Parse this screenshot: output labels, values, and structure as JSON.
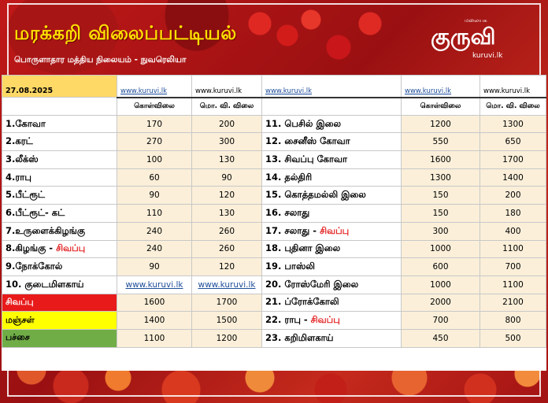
{
  "header": {
    "title": "மரக்கறி விலைப்பட்டியல்",
    "subtitle": "பொருளாதார மத்திய நிலையம் - நுவரெலியா",
    "logo_small": "மலையக",
    "logo_mark": "குருவி",
    "logo_url": "kuruvi.lk"
  },
  "table": {
    "date": "27.08.2025",
    "site_url": "www.kuruvi.lk",
    "col_wholesale": "கொள்விலை",
    "col_retail": "மொ. வி. விலை",
    "rows_left": [
      {
        "name": "1.கோவா",
        "w": "170",
        "r": "200"
      },
      {
        "name": "2.கரட்",
        "w": "270",
        "r": "300"
      },
      {
        "name": "3.லீக்ஸ்",
        "w": "100",
        "r": "130"
      },
      {
        "name": "4.ராபு",
        "w": "60",
        "r": "90"
      },
      {
        "name": "5.பீட்ரூட்",
        "w": "90",
        "r": "120"
      },
      {
        "name": "6.பீட்ரூட்- கட்",
        "w": "110",
        "r": "130"
      },
      {
        "name": "7.உருளைக்கிழங்கு",
        "w": "240",
        "r": "260"
      },
      {
        "name": "8.கிழங்கு - ",
        "red": "சிவப்பு",
        "w": "240",
        "r": "260"
      },
      {
        "name": "9.நோக்கோல்",
        "w": "90",
        "r": "120"
      },
      {
        "name": "10. குடைமிளகாய்",
        "w": "www.kuruvi.lk",
        "r": "www.kuruvi.lk"
      },
      {
        "name": "சிவப்பு",
        "w": "1600",
        "r": "1700"
      },
      {
        "name": "மஞ்சள்",
        "w": "1400",
        "r": "1500"
      },
      {
        "name": "பச்சை",
        "w": "1100",
        "r": "1200"
      }
    ],
    "rows_right": [
      {
        "name": "11. பெசில் இலை",
        "w": "1200",
        "r": "1300"
      },
      {
        "name": "12. சைனீஸ் கோவா",
        "w": "550",
        "r": "650"
      },
      {
        "name": "13. சிவப்பு கோவா",
        "w": "1600",
        "r": "1700"
      },
      {
        "name": "14. தல்திரி",
        "w": "1300",
        "r": "1400"
      },
      {
        "name": "15. கொத்தமல்லி இலை",
        "w": "150",
        "r": "200"
      },
      {
        "name": "16. சலாது",
        "w": "150",
        "r": "180"
      },
      {
        "name": "17. சலாது - ",
        "red": "சிவப்பு",
        "w": "300",
        "r": "400"
      },
      {
        "name": "18. புதினா இலை",
        "w": "1000",
        "r": "1100"
      },
      {
        "name": "19. பாஸ்லி",
        "w": "600",
        "r": "700"
      },
      {
        "name": "20. ரோஸ்மேரி இலை",
        "w": "1000",
        "r": "1100"
      },
      {
        "name": "21. ப்ரோக்கோலி",
        "w": "2000",
        "r": "2100"
      },
      {
        "name": "22. ராபு - ",
        "red": "சிவப்பு",
        "w": "700",
        "r": "800"
      },
      {
        "name": "23. கறிமிளகாய்",
        "w": "450",
        "r": "500"
      }
    ]
  }
}
